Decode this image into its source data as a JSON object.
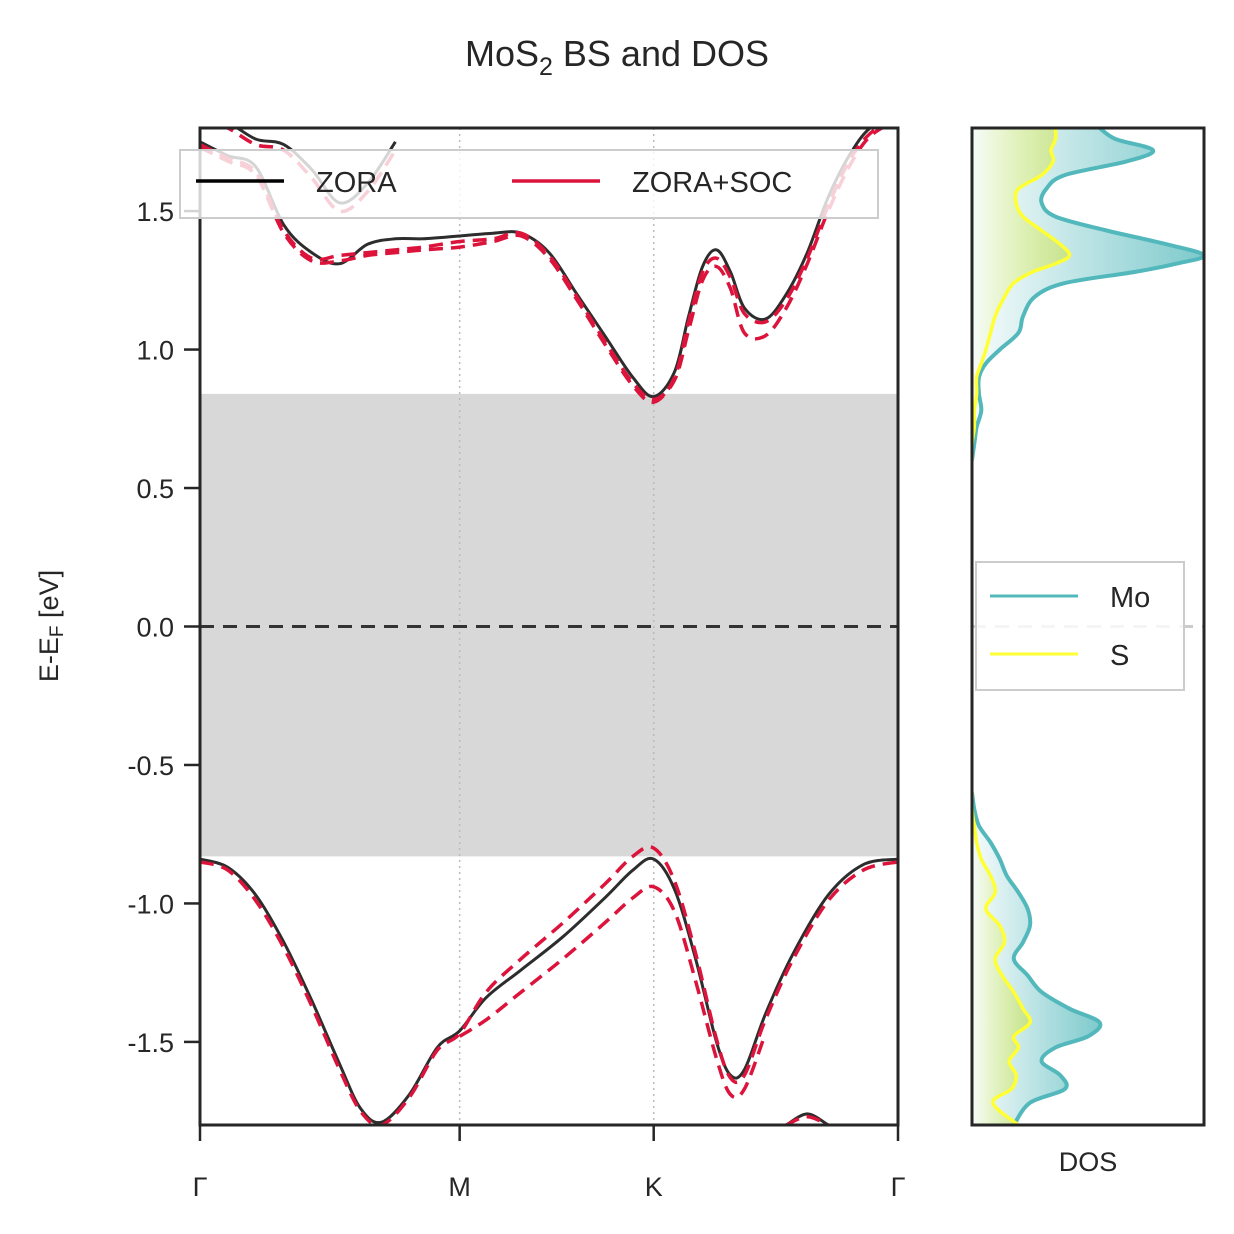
{
  "title": {
    "main": "MoS",
    "subscript": "2",
    "rest": " BS and DOS"
  },
  "colors": {
    "zora": "#2d2d2d",
    "zora_soc": "#dc143c",
    "mo": "#52b8bb",
    "s": "#ffff33",
    "gap_fill": "#d8d8d8",
    "axes": "#262626"
  },
  "chart_data": [
    {
      "type": "line",
      "panel": "band structure",
      "ylabel": "E-E",
      "ylabel_sub": "F",
      "ylabel_unit": " [eV]",
      "ylim": [
        -1.8,
        1.8
      ],
      "yticks": [
        1.5,
        1.0,
        0.5,
        0.0,
        -0.5,
        -1.0,
        -1.5
      ],
      "ytick_labels": [
        "1.5",
        "1.0",
        "0.5",
        "0.0",
        "-0.5",
        "-1.0",
        "-1.5"
      ],
      "kpoints": [
        {
          "label": "Γ",
          "x": 0.0
        },
        {
          "label": "M",
          "x": 0.372
        },
        {
          "label": "K",
          "x": 0.65
        },
        {
          "label": "Γ",
          "x": 1.0
        }
      ],
      "xlim": [
        0,
        1
      ],
      "band_gap_region": [
        -0.83,
        0.84
      ],
      "fermi_level": 0.0,
      "grid": "vertical dotted at high-symmetry points",
      "legend": {
        "position": "top",
        "entries": [
          "ZORA",
          "ZORA+SOC"
        ]
      },
      "series": [
        {
          "name": "ZORA",
          "style": "solid",
          "band": "conduction-1",
          "x": [
            0.0,
            0.04,
            0.08,
            0.12,
            0.16,
            0.2,
            0.24,
            0.28,
            0.32,
            0.372,
            0.42,
            0.46,
            0.5,
            0.54,
            0.58,
            0.62,
            0.65,
            0.68,
            0.7,
            0.72,
            0.74,
            0.76,
            0.78,
            0.81,
            0.84,
            0.87,
            0.9,
            0.93,
            0.96,
            1.0
          ],
          "y": [
            1.75,
            1.7,
            1.66,
            1.45,
            1.35,
            1.31,
            1.38,
            1.4,
            1.4,
            1.41,
            1.42,
            1.42,
            1.35,
            1.2,
            1.05,
            0.9,
            0.83,
            0.92,
            1.12,
            1.3,
            1.36,
            1.28,
            1.15,
            1.11,
            1.2,
            1.35,
            1.55,
            1.7,
            1.8,
            1.85
          ]
        },
        {
          "name": "ZORA",
          "style": "solid",
          "band": "conduction-2",
          "x": [
            0.0,
            0.04,
            0.08,
            0.12,
            0.16,
            0.2,
            0.24,
            0.28
          ],
          "y": [
            1.85,
            1.82,
            1.76,
            1.74,
            1.65,
            1.53,
            1.6,
            1.75
          ]
        },
        {
          "name": "ZORA",
          "style": "solid",
          "band": "valence-1",
          "x": [
            0.0,
            0.04,
            0.08,
            0.12,
            0.16,
            0.2,
            0.23,
            0.26,
            0.3,
            0.34,
            0.372,
            0.41,
            0.46,
            0.52,
            0.58,
            0.62,
            0.65,
            0.68,
            0.71,
            0.74,
            0.76,
            0.78,
            0.81,
            0.85,
            0.9,
            0.95,
            1.0
          ],
          "y": [
            -0.84,
            -0.87,
            -0.97,
            -1.14,
            -1.35,
            -1.58,
            -1.74,
            -1.79,
            -1.69,
            -1.52,
            -1.46,
            -1.34,
            -1.24,
            -1.12,
            -0.98,
            -0.88,
            -0.84,
            -0.95,
            -1.2,
            -1.5,
            -1.62,
            -1.6,
            -1.4,
            -1.18,
            -0.97,
            -0.86,
            -0.84
          ]
        },
        {
          "name": "ZORA",
          "style": "solid",
          "band": "valence-2",
          "x": [
            0.84,
            0.87,
            0.9
          ],
          "y": [
            -1.8,
            -1.76,
            -1.8
          ]
        },
        {
          "name": "ZORA+SOC",
          "style": "dashed",
          "band": "conduction-1-up",
          "x": [
            0.0,
            0.04,
            0.08,
            0.12,
            0.16,
            0.2,
            0.24,
            0.28,
            0.32,
            0.372,
            0.42,
            0.46,
            0.5,
            0.54,
            0.58,
            0.62,
            0.65,
            0.68,
            0.7,
            0.72,
            0.74,
            0.76,
            0.78,
            0.81,
            0.84,
            0.87,
            0.9,
            0.93,
            0.96,
            1.0
          ],
          "y": [
            1.73,
            1.68,
            1.63,
            1.42,
            1.32,
            1.32,
            1.34,
            1.35,
            1.36,
            1.37,
            1.39,
            1.41,
            1.33,
            1.18,
            1.02,
            0.87,
            0.81,
            0.9,
            1.1,
            1.28,
            1.33,
            1.26,
            1.13,
            1.1,
            1.18,
            1.33,
            1.52,
            1.68,
            1.78,
            1.84
          ]
        },
        {
          "name": "ZORA+SOC",
          "style": "dashed",
          "band": "conduction-1-down",
          "x": [
            0.0,
            0.04,
            0.08,
            0.12,
            0.16,
            0.2,
            0.24,
            0.28,
            0.32,
            0.372,
            0.42,
            0.46,
            0.5,
            0.54,
            0.58,
            0.62,
            0.65,
            0.68,
            0.7,
            0.72,
            0.74,
            0.76,
            0.78,
            0.81,
            0.84,
            0.87,
            0.9,
            0.93,
            0.96,
            1.0
          ],
          "y": [
            1.74,
            1.69,
            1.64,
            1.43,
            1.33,
            1.34,
            1.35,
            1.36,
            1.37,
            1.39,
            1.4,
            1.42,
            1.34,
            1.19,
            1.03,
            0.88,
            0.82,
            0.89,
            1.07,
            1.25,
            1.3,
            1.22,
            1.06,
            1.05,
            1.15,
            1.31,
            1.5,
            1.66,
            1.77,
            1.83
          ]
        },
        {
          "name": "ZORA+SOC",
          "style": "dashed",
          "band": "conduction-2-soc",
          "x": [
            0.0,
            0.04,
            0.08,
            0.12,
            0.16,
            0.2,
            0.24,
            0.28
          ],
          "y": [
            1.84,
            1.8,
            1.74,
            1.72,
            1.62,
            1.5,
            1.57,
            1.72
          ]
        },
        {
          "name": "ZORA+SOC",
          "style": "dashed",
          "band": "valence-1-up",
          "x": [
            0.0,
            0.04,
            0.08,
            0.12,
            0.16,
            0.2,
            0.23,
            0.26,
            0.3,
            0.34,
            0.372,
            0.41,
            0.46,
            0.52,
            0.58,
            0.62,
            0.65,
            0.68,
            0.71,
            0.74,
            0.76,
            0.78,
            0.81,
            0.85,
            0.9,
            0.95,
            1.0
          ],
          "y": [
            -0.85,
            -0.88,
            -0.99,
            -1.16,
            -1.37,
            -1.6,
            -1.75,
            -1.8,
            -1.7,
            -1.53,
            -1.47,
            -1.32,
            -1.2,
            -1.07,
            -0.93,
            -0.83,
            -0.8,
            -0.92,
            -1.18,
            -1.49,
            -1.63,
            -1.62,
            -1.42,
            -1.2,
            -0.99,
            -0.88,
            -0.85
          ]
        },
        {
          "name": "ZORA+SOC",
          "style": "dashed",
          "band": "valence-1-down",
          "x": [
            0.372,
            0.41,
            0.46,
            0.52,
            0.58,
            0.62,
            0.65,
            0.68,
            0.71,
            0.74,
            0.76,
            0.78,
            0.81
          ],
          "y": [
            -1.48,
            -1.42,
            -1.32,
            -1.2,
            -1.07,
            -0.98,
            -0.94,
            -1.03,
            -1.28,
            -1.56,
            -1.69,
            -1.67,
            -1.47
          ]
        },
        {
          "name": "ZORA+SOC",
          "style": "dashed",
          "band": "valence-2-soc",
          "x": [
            0.84,
            0.87,
            0.9
          ],
          "y": [
            -1.8,
            -1.77,
            -1.8
          ]
        }
      ]
    },
    {
      "type": "area",
      "panel": "density of states",
      "xlabel": "DOS",
      "ylim": [
        -1.8,
        1.8
      ],
      "xlim": [
        0,
        1
      ],
      "legend": {
        "position": "center",
        "entries": [
          "Mo",
          "S"
        ]
      },
      "series": [
        {
          "name": "Mo",
          "y": [
            1.8,
            1.76,
            1.72,
            1.68,
            1.63,
            1.58,
            1.53,
            1.48,
            1.43,
            1.38,
            1.34,
            1.31,
            1.28,
            1.24,
            1.19,
            1.12,
            1.06,
            1.0,
            0.95,
            0.9,
            0.84,
            0.78,
            0.72,
            0.66,
            0.6,
            -0.6,
            -0.66,
            -0.72,
            -0.78,
            -0.84,
            -0.9,
            -0.96,
            -1.02,
            -1.08,
            -1.14,
            -1.2,
            -1.26,
            -1.32,
            -1.38,
            -1.43,
            -1.48,
            -1.52,
            -1.57,
            -1.62,
            -1.67,
            -1.72,
            -1.8
          ],
          "values": [
            0.55,
            0.62,
            0.78,
            0.67,
            0.4,
            0.32,
            0.3,
            0.36,
            0.58,
            0.84,
            1.0,
            0.88,
            0.7,
            0.4,
            0.27,
            0.22,
            0.2,
            0.12,
            0.06,
            0.03,
            0.03,
            0.04,
            0.02,
            0.01,
            0.0,
            0.0,
            0.01,
            0.03,
            0.08,
            0.12,
            0.15,
            0.2,
            0.24,
            0.25,
            0.22,
            0.18,
            0.24,
            0.3,
            0.42,
            0.55,
            0.5,
            0.36,
            0.3,
            0.38,
            0.4,
            0.25,
            0.18
          ]
        },
        {
          "name": "S",
          "y": [
            1.8,
            1.76,
            1.72,
            1.68,
            1.63,
            1.58,
            1.53,
            1.48,
            1.43,
            1.38,
            1.34,
            1.31,
            1.28,
            1.24,
            1.19,
            1.12,
            1.06,
            1.0,
            0.95,
            0.9,
            0.84,
            0.78,
            0.72,
            0.66,
            0.6,
            -0.6,
            -0.66,
            -0.72,
            -0.78,
            -0.84,
            -0.9,
            -0.96,
            -1.02,
            -1.08,
            -1.14,
            -1.2,
            -1.26,
            -1.32,
            -1.38,
            -1.43,
            -1.48,
            -1.52,
            -1.57,
            -1.62,
            -1.67,
            -1.72,
            -1.8
          ],
          "values": [
            0.36,
            0.36,
            0.34,
            0.35,
            0.3,
            0.2,
            0.19,
            0.22,
            0.3,
            0.38,
            0.42,
            0.36,
            0.26,
            0.18,
            0.14,
            0.1,
            0.08,
            0.06,
            0.04,
            0.02,
            0.02,
            0.01,
            0.01,
            0.0,
            0.0,
            0.0,
            0.0,
            0.01,
            0.02,
            0.04,
            0.08,
            0.1,
            0.06,
            0.12,
            0.14,
            0.1,
            0.13,
            0.18,
            0.22,
            0.25,
            0.18,
            0.2,
            0.16,
            0.19,
            0.17,
            0.09,
            0.2
          ]
        }
      ]
    }
  ]
}
